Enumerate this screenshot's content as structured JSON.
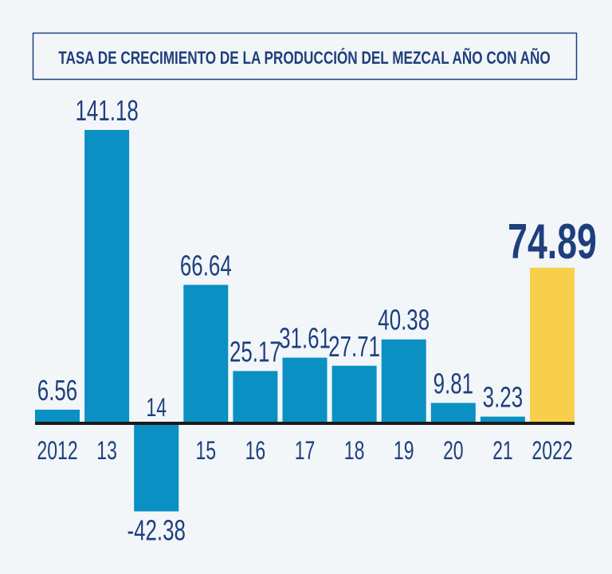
{
  "chart_data": {
    "type": "bar",
    "title": "TASA DE CRECIMIENTO DE LA PRODUCCIÓN DEL MEZCAL AÑO CON AÑO",
    "xlabel": "",
    "ylabel": "",
    "categories": [
      "2012",
      "13",
      "14",
      "15",
      "16",
      "17",
      "18",
      "19",
      "20",
      "21",
      "2022"
    ],
    "values": [
      6.56,
      141.18,
      -42.38,
      66.64,
      25.17,
      31.61,
      27.71,
      40.38,
      9.81,
      3.23,
      74.89
    ],
    "value_labels": [
      "6.56",
      "141.18",
      "-42.38",
      "66.64",
      "25.17",
      "31.61",
      "27.71",
      "40.38",
      "9.81",
      "3.23",
      "74.89"
    ],
    "highlight_index": 10,
    "ylim": [
      -42.38,
      141.18
    ],
    "grid": false,
    "colors": {
      "bar": "#0a90c2",
      "highlight": "#f8cf4a",
      "text": "#1f3f7c",
      "axis": "#1a1a1a",
      "background": "#f2f6f9"
    }
  }
}
